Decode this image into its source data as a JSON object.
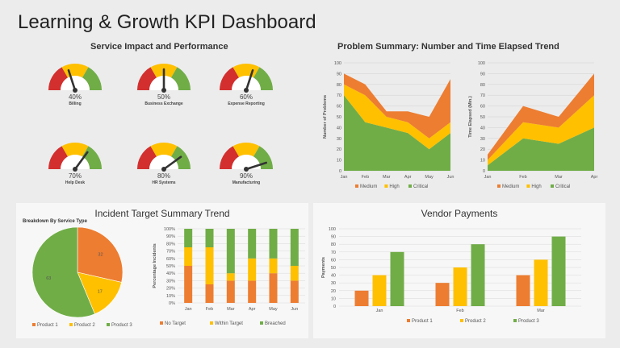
{
  "dashboard": {
    "title": "Learning & Growth KPI Dashboard",
    "sections": {
      "service": "Service Impact and Performance",
      "problem": "Problem Summary: Number and Time Elapsed Trend",
      "incident": "Incident Target Summary Trend",
      "vendor": "Vendor Payments"
    }
  },
  "colors": {
    "red": "#d32f2f",
    "orange": "#ed7d31",
    "yellow": "#ffc000",
    "green": "#70ad47"
  },
  "gauges": [
    {
      "value": "40%",
      "label": "Billing",
      "level": 0.4
    },
    {
      "value": "50%",
      "label": "Business Exchange",
      "level": 0.5
    },
    {
      "value": "60%",
      "label": "Expense Reporting",
      "level": 0.6
    },
    {
      "value": "70%",
      "label": "Help Desk",
      "level": 0.7
    },
    {
      "value": "80%",
      "label": "HR Systems",
      "level": 0.8
    },
    {
      "value": "90%",
      "label": "Manufacturing",
      "level": 0.9
    }
  ],
  "chart_data": [
    {
      "id": "problems",
      "type": "area",
      "ylabel": "Number of Problems",
      "categories": [
        "Jan",
        "Feb",
        "Mar",
        "Apr",
        "May",
        "Jun"
      ],
      "ylim": [
        0,
        100
      ],
      "yticks": [
        0,
        10,
        20,
        30,
        40,
        50,
        60,
        70,
        80,
        90,
        100
      ],
      "series": [
        {
          "name": "Critical",
          "values": [
            70,
            45,
            40,
            35,
            20,
            35
          ]
        },
        {
          "name": "High",
          "values": [
            10,
            25,
            10,
            10,
            10,
            10
          ]
        },
        {
          "name": "Medium",
          "values": [
            10,
            10,
            5,
            10,
            20,
            40
          ]
        }
      ],
      "legend": "bottom"
    },
    {
      "id": "time",
      "type": "area",
      "ylabel": "Time Elapsed (Min.)",
      "categories": [
        "Jan",
        "Feb",
        "Mar",
        "Apr"
      ],
      "ylim": [
        0,
        100
      ],
      "yticks": [
        0,
        10,
        20,
        30,
        40,
        50,
        60,
        70,
        80,
        90,
        100
      ],
      "series": [
        {
          "name": "Critical",
          "values": [
            5,
            30,
            25,
            40
          ]
        },
        {
          "name": "High",
          "values": [
            5,
            15,
            15,
            30
          ]
        },
        {
          "name": "Medium",
          "values": [
            5,
            15,
            10,
            20
          ]
        }
      ],
      "legend": "bottom"
    },
    {
      "id": "pie",
      "type": "pie",
      "title": "Breakdown By Service Type",
      "labels": [
        "Product 1",
        "Product 2",
        "Product 3"
      ],
      "values": [
        32,
        17,
        63
      ],
      "legend": "bottom"
    },
    {
      "id": "stacked",
      "type": "bar",
      "ylabel": "Percentage Incidents",
      "categories": [
        "Jan",
        "Feb",
        "Mar",
        "Apr",
        "May",
        "Jun"
      ],
      "ylim": [
        0,
        100
      ],
      "yticks": [
        "0%",
        "10%",
        "20%",
        "30%",
        "40%",
        "50%",
        "60%",
        "70%",
        "80%",
        "90%",
        "100%"
      ],
      "series": [
        {
          "name": "No Target",
          "values": [
            50,
            25,
            30,
            30,
            40,
            30
          ]
        },
        {
          "name": "Within Target",
          "values": [
            25,
            50,
            10,
            30,
            20,
            20
          ]
        },
        {
          "name": "Breached",
          "values": [
            25,
            25,
            60,
            40,
            40,
            50
          ]
        }
      ],
      "legend": "bottom"
    },
    {
      "id": "vendor",
      "type": "bar",
      "ylabel": "Payments",
      "categories": [
        "Jan",
        "Feb",
        "Mar"
      ],
      "ylim": [
        0,
        100
      ],
      "yticks": [
        0,
        10,
        20,
        30,
        40,
        50,
        60,
        70,
        80,
        90,
        100
      ],
      "series": [
        {
          "name": "Product 1",
          "values": [
            20,
            30,
            40
          ]
        },
        {
          "name": "Product 2",
          "values": [
            40,
            50,
            60
          ]
        },
        {
          "name": "Product 3",
          "values": [
            70,
            80,
            90
          ]
        }
      ],
      "legend": "bottom"
    }
  ]
}
